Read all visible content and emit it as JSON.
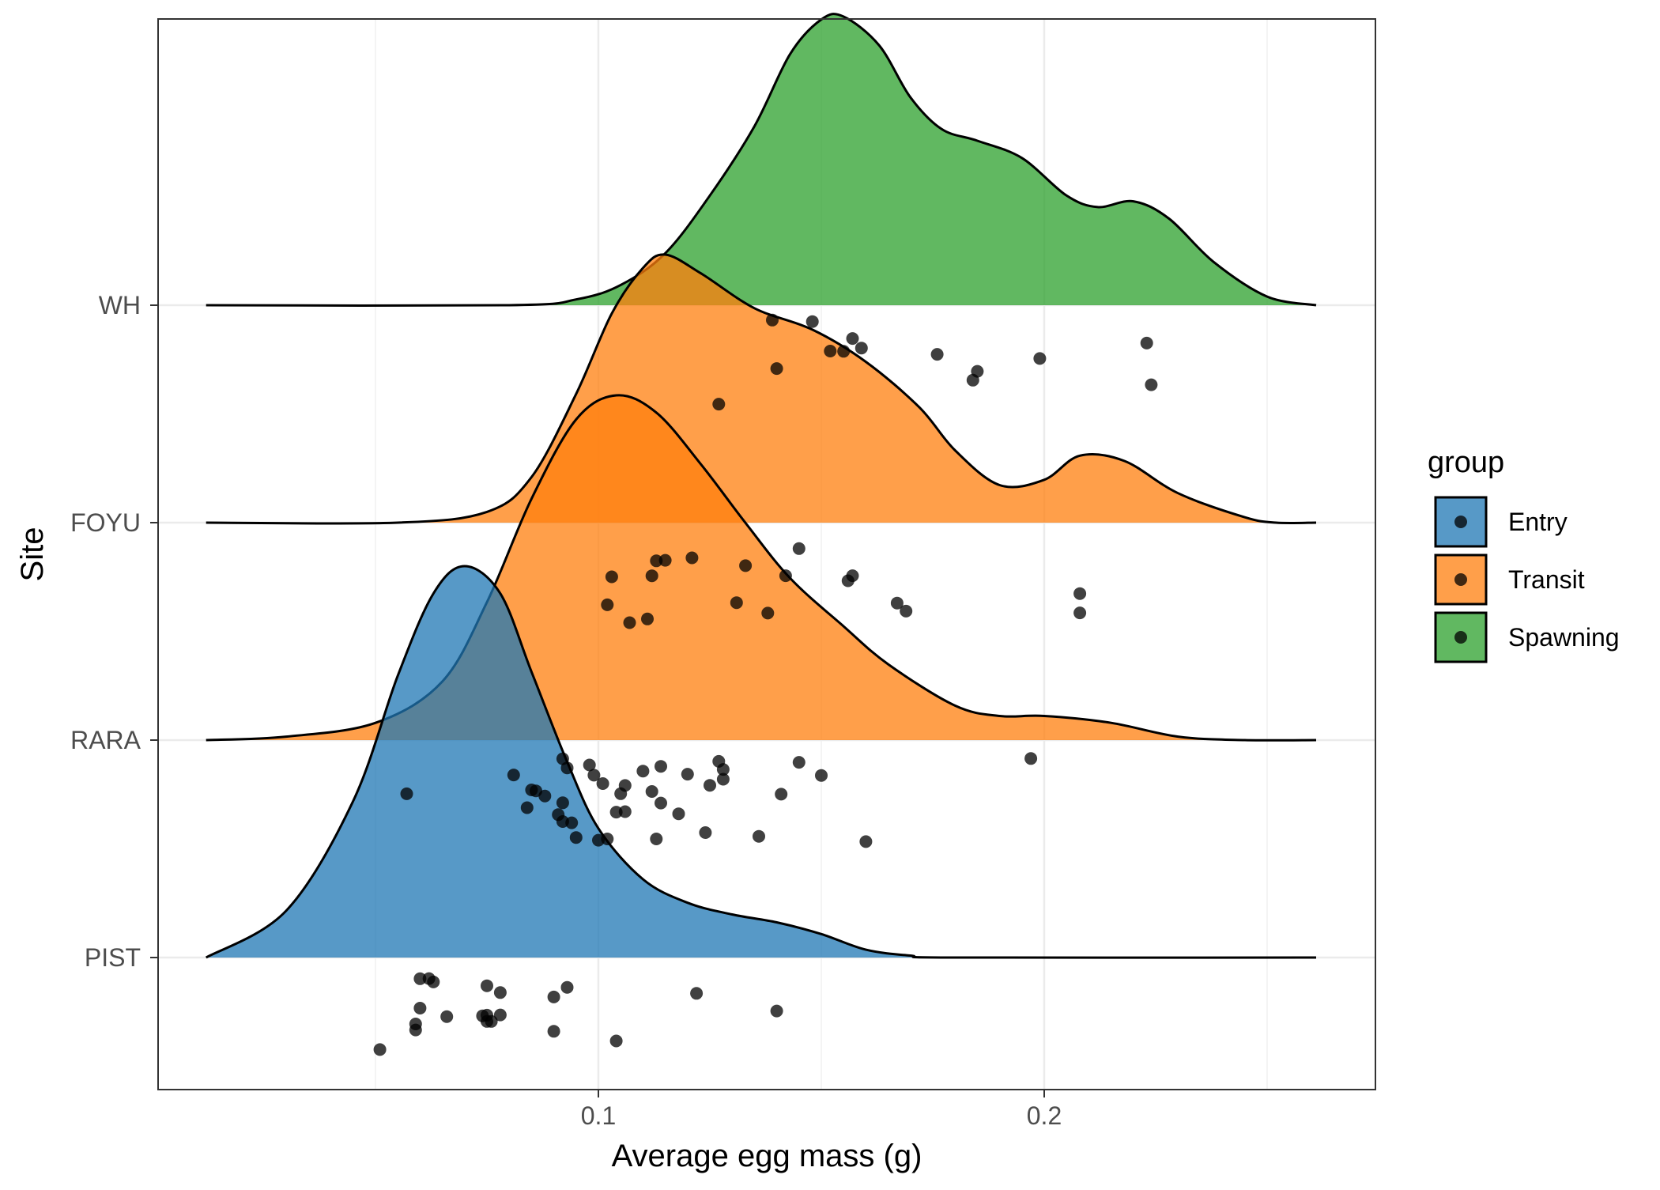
{
  "chart_data": {
    "type": "ridgeline",
    "xlabel": "Average egg mass (g)",
    "ylabel": "Site",
    "xlim": [
      0.0,
      0.28
    ],
    "x_ticks": [
      {
        "value": 0.1,
        "label": "0.1"
      },
      {
        "value": 0.2,
        "label": "0.2"
      }
    ],
    "x_minor_gridlines": [
      0.05,
      0.15,
      0.25
    ],
    "sites": [
      "PIST",
      "RARA",
      "FOYU",
      "WH"
    ],
    "grid": true,
    "legend": {
      "title": "group",
      "placement": "right",
      "entries": [
        {
          "label": "Entry",
          "color": "#1f77b4"
        },
        {
          "label": "Transit",
          "color": "#ff7f0e"
        },
        {
          "label": "Spawning",
          "color": "#2ca02c"
        }
      ]
    },
    "series": [
      {
        "site": "PIST",
        "group": "Entry",
        "density": [
          [
            0.012,
            0.0
          ],
          [
            0.03,
            0.12
          ],
          [
            0.045,
            0.4
          ],
          [
            0.055,
            0.72
          ],
          [
            0.063,
            0.93
          ],
          [
            0.07,
            1.0
          ],
          [
            0.078,
            0.93
          ],
          [
            0.085,
            0.73
          ],
          [
            0.093,
            0.5
          ],
          [
            0.1,
            0.33
          ],
          [
            0.11,
            0.2
          ],
          [
            0.12,
            0.14
          ],
          [
            0.13,
            0.11
          ],
          [
            0.14,
            0.09
          ],
          [
            0.15,
            0.06
          ],
          [
            0.16,
            0.02
          ],
          [
            0.17,
            0.005
          ],
          [
            0.18,
            0.0
          ],
          [
            0.261,
            0.0
          ]
        ],
        "points": [
          0.075,
          0.075,
          0.063,
          0.122,
          0.14,
          0.066,
          0.06,
          0.051,
          0.059,
          0.06,
          0.09,
          0.104,
          0.059,
          0.062,
          0.074,
          0.078,
          0.09,
          0.075,
          0.076,
          0.078,
          0.093
        ]
      },
      {
        "site": "RARA",
        "group": "Transit",
        "density": [
          [
            0.012,
            0.0
          ],
          [
            0.03,
            0.01
          ],
          [
            0.05,
            0.05
          ],
          [
            0.065,
            0.17
          ],
          [
            0.075,
            0.4
          ],
          [
            0.085,
            0.7
          ],
          [
            0.095,
            0.93
          ],
          [
            0.104,
            1.0
          ],
          [
            0.113,
            0.95
          ],
          [
            0.123,
            0.8
          ],
          [
            0.133,
            0.63
          ],
          [
            0.143,
            0.47
          ],
          [
            0.155,
            0.33
          ],
          [
            0.165,
            0.22
          ],
          [
            0.18,
            0.1
          ],
          [
            0.19,
            0.07
          ],
          [
            0.2,
            0.07
          ],
          [
            0.215,
            0.05
          ],
          [
            0.23,
            0.01
          ],
          [
            0.245,
            0.0
          ],
          [
            0.261,
            0.0
          ]
        ],
        "points": [
          0.092,
          0.095,
          0.1,
          0.098,
          0.105,
          0.102,
          0.11,
          0.112,
          0.114,
          0.118,
          0.128,
          0.128,
          0.16,
          0.057,
          0.081,
          0.092,
          0.101,
          0.093,
          0.094,
          0.106,
          0.125,
          0.127,
          0.136,
          0.15,
          0.124,
          0.088,
          0.099,
          0.084,
          0.085,
          0.092,
          0.104,
          0.114,
          0.12,
          0.141,
          0.145,
          0.197,
          0.086,
          0.091,
          0.106,
          0.113
        ]
      },
      {
        "site": "FOYU",
        "group": "Transit",
        "density": [
          [
            0.012,
            0.0
          ],
          [
            0.055,
            0.0
          ],
          [
            0.075,
            0.04
          ],
          [
            0.085,
            0.17
          ],
          [
            0.095,
            0.48
          ],
          [
            0.103,
            0.78
          ],
          [
            0.11,
            0.95
          ],
          [
            0.115,
            1.0
          ],
          [
            0.123,
            0.93
          ],
          [
            0.135,
            0.8
          ],
          [
            0.148,
            0.72
          ],
          [
            0.16,
            0.6
          ],
          [
            0.172,
            0.43
          ],
          [
            0.18,
            0.27
          ],
          [
            0.19,
            0.14
          ],
          [
            0.2,
            0.16
          ],
          [
            0.208,
            0.25
          ],
          [
            0.218,
            0.23
          ],
          [
            0.23,
            0.11
          ],
          [
            0.245,
            0.02
          ],
          [
            0.252,
            0.0
          ],
          [
            0.261,
            0.0
          ]
        ],
        "points": [
          0.133,
          0.142,
          0.156,
          0.157,
          0.169,
          0.103,
          0.112,
          0.115,
          0.121,
          0.131,
          0.145,
          0.113,
          0.102,
          0.208,
          0.107,
          0.111,
          0.138,
          0.167,
          0.208
        ]
      },
      {
        "site": "WH",
        "group": "Spawning",
        "density": [
          [
            0.012,
            0.0
          ],
          [
            0.08,
            0.0
          ],
          [
            0.095,
            0.02
          ],
          [
            0.105,
            0.07
          ],
          [
            0.115,
            0.18
          ],
          [
            0.125,
            0.38
          ],
          [
            0.135,
            0.62
          ],
          [
            0.143,
            0.87
          ],
          [
            0.15,
            0.99
          ],
          [
            0.155,
            1.0
          ],
          [
            0.163,
            0.9
          ],
          [
            0.17,
            0.72
          ],
          [
            0.177,
            0.61
          ],
          [
            0.185,
            0.57
          ],
          [
            0.195,
            0.51
          ],
          [
            0.205,
            0.38
          ],
          [
            0.212,
            0.34
          ],
          [
            0.22,
            0.36
          ],
          [
            0.228,
            0.3
          ],
          [
            0.238,
            0.15
          ],
          [
            0.25,
            0.03
          ],
          [
            0.261,
            0.0
          ]
        ],
        "points": [
          0.14,
          0.148,
          0.159,
          0.152,
          0.157,
          0.176,
          0.184,
          0.224,
          0.223,
          0.127,
          0.139,
          0.155,
          0.185,
          0.199
        ]
      }
    ]
  }
}
